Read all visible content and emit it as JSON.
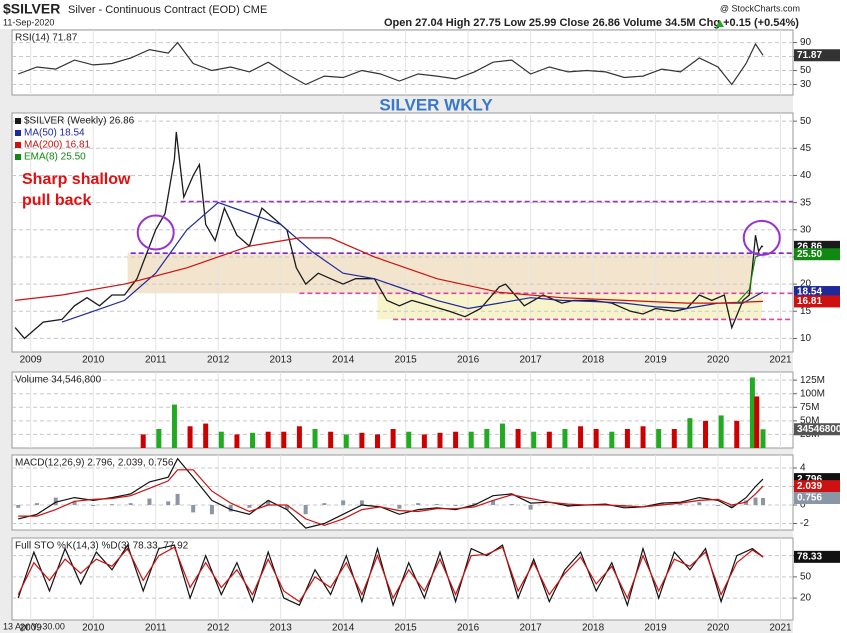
{
  "header": {
    "symbol": "$SILVER",
    "name": "Silver - Continuous Contract (EOD) CME",
    "date": "11-Sep-2020",
    "quote": "Open 27.04 High 27.75 Low 25.99 Close 26.86 Volume 34.5M Chg +0.15 (+0.54%)",
    "credit": "@ StockCharts.com",
    "overlay": "SILVER WKLY",
    "footer": "13 Apr Y:-30.00"
  },
  "chart_data": [
    {
      "type": "line",
      "title": "RSI(14) 71.87",
      "xlim": [
        2008.7,
        2021.2
      ],
      "ylim": [
        15,
        108
      ],
      "yticks": [
        90,
        70,
        50,
        30
      ],
      "grid": true,
      "x": [
        2008.8,
        2009.1,
        2009.4,
        2009.7,
        2010.0,
        2010.3,
        2010.6,
        2010.9,
        2011.2,
        2011.35,
        2011.6,
        2011.9,
        2012.2,
        2012.5,
        2012.8,
        2013.1,
        2013.4,
        2013.7,
        2014.0,
        2014.3,
        2014.6,
        2014.9,
        2015.2,
        2015.5,
        2015.8,
        2016.1,
        2016.4,
        2016.7,
        2017.0,
        2017.3,
        2017.6,
        2017.9,
        2018.2,
        2018.5,
        2018.8,
        2019.1,
        2019.4,
        2019.7,
        2020.0,
        2020.22,
        2020.45,
        2020.6,
        2020.72
      ],
      "series": [
        {
          "color": "#333333",
          "badge": "71.87",
          "values": [
            45,
            55,
            52,
            65,
            58,
            60,
            68,
            80,
            75,
            90,
            60,
            50,
            55,
            48,
            62,
            45,
            30,
            42,
            40,
            50,
            45,
            35,
            45,
            42,
            38,
            48,
            62,
            65,
            45,
            55,
            48,
            50,
            48,
            40,
            42,
            52,
            48,
            68,
            55,
            30,
            60,
            88,
            71.87
          ]
        }
      ]
    },
    {
      "type": "line",
      "xlim": [
        2008.7,
        2021.2
      ],
      "ylim": [
        7.5,
        51.5
      ],
      "yticks": [
        50,
        45,
        40,
        35,
        30,
        25,
        20,
        15,
        10
      ],
      "xticks": [
        2009,
        2010,
        2011,
        2012,
        2013,
        2014,
        2015,
        2016,
        2017,
        2018,
        2019,
        2020,
        2021
      ],
      "grid": true,
      "annotation": [
        "Sharp shallow",
        "pull back"
      ],
      "bands": [
        {
          "x": [
            2010.55,
            2020.55
          ],
          "y": [
            18.3,
            25.7
          ],
          "color": "#f1dfc6"
        },
        {
          "x": [
            2014.55,
            2020.7
          ],
          "y": [
            13.5,
            18.3
          ],
          "color": "#f6f1c2"
        }
      ],
      "levels": [
        {
          "value": 35.2,
          "from": 2011.4,
          "color": "#9933cc"
        },
        {
          "value": 25.7,
          "from": 2010.6,
          "color": "#7722cc"
        },
        {
          "value": 18.3,
          "from": 2013.3,
          "color": "#dd44aa"
        },
        {
          "value": 13.5,
          "from": 2014.8,
          "color": "#dd44aa"
        }
      ],
      "circles": [
        {
          "x": 2011.0,
          "y": 29.5,
          "color": "#9933cc"
        },
        {
          "x": 2020.7,
          "y": 28.5,
          "color": "#9933cc"
        }
      ],
      "series": [
        {
          "name": "$SILVER (Weekly) 26.86",
          "color": "#1a1a1a",
          "badge": "26.86",
          "x": [
            2008.75,
            2008.9,
            2009.0,
            2009.2,
            2009.5,
            2009.7,
            2009.9,
            2010.1,
            2010.3,
            2010.5,
            2010.7,
            2010.9,
            2011.0,
            2011.15,
            2011.3,
            2011.33,
            2011.45,
            2011.6,
            2011.7,
            2011.8,
            2011.95,
            2012.1,
            2012.3,
            2012.5,
            2012.7,
            2012.9,
            2013.1,
            2013.25,
            2013.4,
            2013.6,
            2013.8,
            2014.0,
            2014.2,
            2014.5,
            2014.7,
            2014.9,
            2015.1,
            2015.4,
            2015.7,
            2015.95,
            2016.2,
            2016.5,
            2016.6,
            2016.9,
            2017.2,
            2017.5,
            2017.7,
            2018.0,
            2018.3,
            2018.6,
            2018.8,
            2019.0,
            2019.3,
            2019.5,
            2019.7,
            2019.9,
            2020.1,
            2020.22,
            2020.4,
            2020.5,
            2020.55,
            2020.6,
            2020.65,
            2020.7,
            2020.72
          ],
          "values": [
            12,
            10,
            11,
            13,
            13.5,
            16,
            17.5,
            16,
            18,
            18,
            21,
            27,
            30,
            33,
            43,
            48,
            36,
            40,
            42,
            31,
            28,
            34,
            29,
            27,
            34,
            32,
            30,
            23,
            20,
            22,
            21,
            20,
            21,
            21,
            17,
            16,
            17,
            16,
            15,
            14,
            15.5,
            19.5,
            20,
            16,
            18,
            16.5,
            17,
            17,
            16.5,
            15,
            14.5,
            15.5,
            15,
            15.5,
            18,
            17,
            18,
            12,
            17,
            18,
            23,
            29,
            26,
            27,
            26.86
          ]
        },
        {
          "name": "MA(50) 18.54",
          "color": "#1f2a9a",
          "badge": "18.54",
          "x": [
            2009.5,
            2010.0,
            2010.5,
            2011.0,
            2011.5,
            2012.0,
            2012.5,
            2013.0,
            2013.5,
            2014.0,
            2014.5,
            2015.0,
            2015.5,
            2016.0,
            2016.5,
            2017.0,
            2017.5,
            2018.0,
            2018.5,
            2019.0,
            2019.5,
            2020.0,
            2020.4,
            2020.72
          ],
          "values": [
            13,
            15,
            17,
            22,
            30,
            35,
            33,
            31,
            26,
            22,
            21,
            19,
            17,
            15.5,
            16.5,
            17.5,
            17,
            16.8,
            16.5,
            15.8,
            15.5,
            16.5,
            16.5,
            18.54
          ]
        },
        {
          "name": "MA(200) 16.81",
          "color": "#cc1111",
          "badge": "16.81",
          "x": [
            2008.75,
            2009.5,
            2010.5,
            2011.5,
            2012.5,
            2013.3,
            2013.8,
            2014.5,
            2015.5,
            2016.5,
            2017.5,
            2018.5,
            2019.5,
            2020.0,
            2020.72
          ],
          "values": [
            17,
            18,
            20,
            23,
            27,
            28.5,
            28.5,
            25,
            21,
            18.5,
            17.5,
            17,
            16.5,
            16.5,
            16.81
          ]
        },
        {
          "name": "EMA(8) 25.50",
          "color": "#118811",
          "badge": "25.50",
          "x": [
            2020.3,
            2020.5,
            2020.6,
            2020.72
          ],
          "values": [
            16.5,
            19,
            25,
            25.5
          ]
        }
      ]
    },
    {
      "type": "bar",
      "title": "Volume 34,546,800",
      "xlim": [
        2008.7,
        2021.2
      ],
      "ylim": [
        0,
        140000000
      ],
      "yticks": [
        {
          "value": 125000000,
          "label": "125M"
        },
        {
          "value": 100000000,
          "label": "100M"
        },
        {
          "value": 75000000,
          "label": "75M"
        },
        {
          "value": 50000000,
          "label": "50M"
        },
        {
          "value": 25000000,
          "label": "25M"
        }
      ],
      "grid": true,
      "x": [
        2010.8,
        2011.05,
        2011.3,
        2011.55,
        2011.8,
        2012.05,
        2012.3,
        2012.55,
        2012.8,
        2013.05,
        2013.3,
        2013.55,
        2013.8,
        2014.05,
        2014.3,
        2014.55,
        2014.8,
        2015.05,
        2015.3,
        2015.55,
        2015.8,
        2016.05,
        2016.3,
        2016.55,
        2016.8,
        2017.05,
        2017.3,
        2017.55,
        2017.8,
        2018.05,
        2018.3,
        2018.55,
        2018.8,
        2019.05,
        2019.3,
        2019.55,
        2019.8,
        2020.05,
        2020.3,
        2020.55,
        2020.62,
        2020.72
      ],
      "series": [
        {
          "badge": "34546800",
          "color": "#cc0000",
          "bar_colors": [
            "#cc0000",
            "#22aa22",
            "#22aa22",
            "#cc0000",
            "#cc0000",
            "#22aa22",
            "#cc0000",
            "#22aa22",
            "#cc0000",
            "#cc0000",
            "#cc0000",
            "#22aa22",
            "#cc0000",
            "#22aa22",
            "#cc0000",
            "#cc0000",
            "#cc0000",
            "#22aa22",
            "#cc0000",
            "#cc0000",
            "#cc0000",
            "#22aa22",
            "#22aa22",
            "#22aa22",
            "#cc0000",
            "#22aa22",
            "#cc0000",
            "#22aa22",
            "#cc0000",
            "#cc0000",
            "#22aa22",
            "#cc0000",
            "#cc0000",
            "#22aa22",
            "#cc0000",
            "#22aa22",
            "#cc0000",
            "#22aa22",
            "#cc0000",
            "#22aa22",
            "#cc0000",
            "#22aa22"
          ],
          "values": [
            25000000,
            35000000,
            80000000,
            40000000,
            45000000,
            30000000,
            25000000,
            28000000,
            30000000,
            30000000,
            40000000,
            35000000,
            30000000,
            25000000,
            28000000,
            25000000,
            35000000,
            30000000,
            25000000,
            28000000,
            30000000,
            30000000,
            35000000,
            45000000,
            35000000,
            30000000,
            30000000,
            35000000,
            40000000,
            35000000,
            30000000,
            35000000,
            40000000,
            35000000,
            35000000,
            55000000,
            50000000,
            60000000,
            50000000,
            130000000,
            95000000,
            34546800
          ]
        }
      ]
    },
    {
      "type": "line",
      "title": "MACD(12,26,9) 2.796, 2.039, 0.756",
      "xlim": [
        2008.7,
        2021.2
      ],
      "ylim": [
        -2.7,
        5.4
      ],
      "yticks": [
        4,
        2,
        0,
        -2
      ],
      "grid": true,
      "x": [
        2008.8,
        2009.1,
        2009.4,
        2009.7,
        2010.0,
        2010.3,
        2010.6,
        2010.9,
        2011.2,
        2011.35,
        2011.6,
        2011.9,
        2012.2,
        2012.5,
        2012.8,
        2013.1,
        2013.4,
        2013.7,
        2014.0,
        2014.3,
        2014.6,
        2014.9,
        2015.2,
        2015.5,
        2015.8,
        2016.1,
        2016.4,
        2016.7,
        2017.0,
        2017.3,
        2017.6,
        2017.9,
        2018.2,
        2018.5,
        2018.8,
        2019.1,
        2019.4,
        2019.7,
        2020.0,
        2020.22,
        2020.45,
        2020.6,
        2020.72
      ],
      "hist": {
        "color": "#8a96a6",
        "badge": "0.756",
        "values": [
          -0.3,
          0.2,
          0.8,
          0.4,
          -0.1,
          0.1,
          0.2,
          0.7,
          0.4,
          1.2,
          -0.8,
          -1,
          -0.7,
          -0.3,
          0.5,
          -0.5,
          -1,
          0.2,
          0.5,
          0.5,
          0,
          -0.4,
          0.2,
          0.1,
          -0.1,
          0.2,
          0.5,
          0.1,
          -0.5,
          0,
          -0.2,
          0,
          0.1,
          -0.2,
          0,
          0.2,
          0.1,
          0.3,
          -0.1,
          -0.3,
          0.5,
          0.8,
          0.756
        ]
      },
      "series": [
        {
          "color": "#111111",
          "badge": "2.796",
          "values": [
            -1.5,
            -1,
            0.3,
            0.8,
            0.5,
            0.8,
            1.2,
            2.5,
            3,
            5,
            3,
            0.5,
            -0.5,
            -1,
            0.5,
            -0.5,
            -2.5,
            -2,
            -1,
            0,
            -0.2,
            -1,
            -0.5,
            -0.3,
            -0.5,
            0,
            1,
            1.2,
            0.2,
            0.3,
            -0.1,
            0,
            0.1,
            -0.3,
            -0.2,
            0.2,
            0.3,
            0.8,
            0.5,
            -0.3,
            0.8,
            2,
            2.796
          ]
        },
        {
          "color": "#cc1111",
          "badge": "2.039",
          "values": [
            -1.2,
            -1.2,
            -0.5,
            0.4,
            0.6,
            0.7,
            1,
            1.8,
            2.6,
            3.8,
            3.8,
            1.5,
            0.2,
            -0.7,
            0,
            0,
            -1.5,
            -2.2,
            -1.5,
            -0.5,
            -0.2,
            -0.6,
            -0.7,
            -0.4,
            -0.4,
            -0.2,
            0.5,
            1.1,
            0.7,
            0.3,
            0.1,
            0,
            0,
            -0.1,
            -0.2,
            0,
            0.2,
            0.5,
            0.6,
            0,
            0.3,
            1.2,
            2.039
          ]
        }
      ]
    },
    {
      "type": "line",
      "title": "Full STO %K(14,3) %D(3) 78.33, 77.92",
      "xlim": [
        2008.7,
        2021.2
      ],
      "ylim": [
        -11,
        105
      ],
      "yticks": [
        80,
        50,
        20
      ],
      "xticks": [
        2009,
        2010,
        2011,
        2012,
        2013,
        2014,
        2015,
        2016,
        2017,
        2018,
        2019,
        2020,
        2021
      ],
      "grid": true,
      "x": [
        2008.8,
        2009.05,
        2009.3,
        2009.55,
        2009.8,
        2010.05,
        2010.3,
        2010.55,
        2010.8,
        2011.05,
        2011.3,
        2011.55,
        2011.8,
        2012.05,
        2012.3,
        2012.55,
        2012.8,
        2013.05,
        2013.3,
        2013.55,
        2013.8,
        2014.05,
        2014.3,
        2014.55,
        2014.8,
        2015.05,
        2015.3,
        2015.55,
        2015.8,
        2016.05,
        2016.3,
        2016.55,
        2016.8,
        2017.05,
        2017.3,
        2017.55,
        2017.8,
        2018.05,
        2018.3,
        2018.55,
        2018.8,
        2019.05,
        2019.3,
        2019.55,
        2019.8,
        2020.05,
        2020.3,
        2020.55,
        2020.72
      ],
      "series": [
        {
          "color": "#111111",
          "badge": "78.33",
          "values": [
            20,
            85,
            30,
            90,
            40,
            85,
            60,
            95,
            30,
            90,
            95,
            20,
            80,
            25,
            70,
            15,
            85,
            20,
            10,
            60,
            25,
            80,
            15,
            90,
            10,
            70,
            20,
            85,
            15,
            90,
            80,
            95,
            20,
            75,
            15,
            60,
            85,
            30,
            70,
            10,
            90,
            20,
            85,
            60,
            90,
            15,
            80,
            90,
            78.33
          ]
        },
        {
          "color": "#cc1111",
          "values": [
            25,
            70,
            45,
            75,
            55,
            75,
            65,
            90,
            45,
            80,
            92,
            35,
            70,
            35,
            60,
            25,
            75,
            30,
            15,
            50,
            35,
            70,
            25,
            80,
            20,
            60,
            30,
            75,
            25,
            80,
            82,
            92,
            30,
            70,
            25,
            55,
            78,
            40,
            65,
            20,
            80,
            30,
            75,
            65,
            85,
            25,
            70,
            88,
            77.92
          ]
        }
      ]
    }
  ]
}
